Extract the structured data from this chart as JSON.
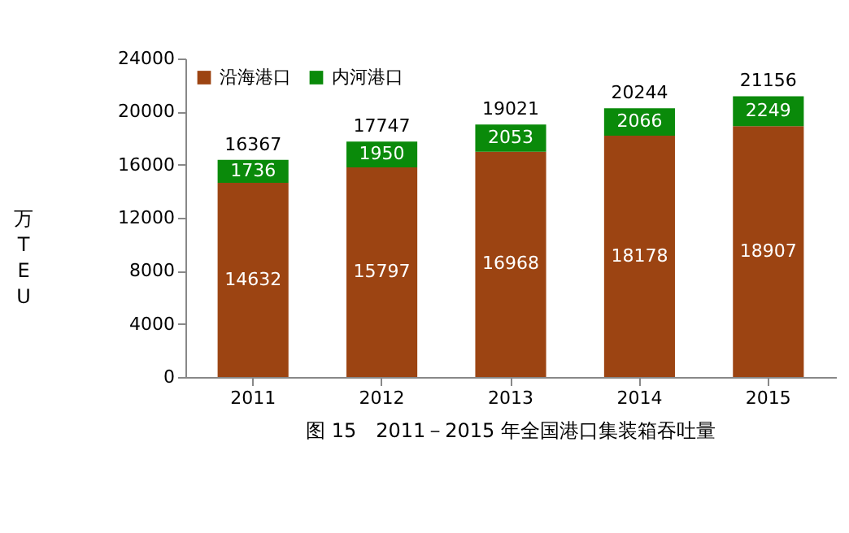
{
  "chart_data": {
    "type": "bar",
    "title": "图 15　2011－2015 年全国港口集装箱吞吐量",
    "ylabel": "万TEU",
    "categories": [
      "2011",
      "2012",
      "2013",
      "2014",
      "2015"
    ],
    "stacked": true,
    "series": [
      {
        "name": "沿海港口",
        "color": "#9c4412",
        "values": [
          14632,
          15797,
          16968,
          18178,
          18907
        ]
      },
      {
        "name": "内河港口",
        "color": "#0a8a0a",
        "values": [
          1736,
          1950,
          2053,
          2066,
          2249
        ]
      }
    ],
    "totals": [
      "16367",
      "17747",
      "19021",
      "20244",
      "21156"
    ],
    "data_labels": true,
    "ylim": [
      0,
      24000
    ],
    "yticks": [
      0,
      4000,
      8000,
      12000,
      16000,
      20000,
      24000
    ],
    "grid": false,
    "legend": "top left"
  }
}
